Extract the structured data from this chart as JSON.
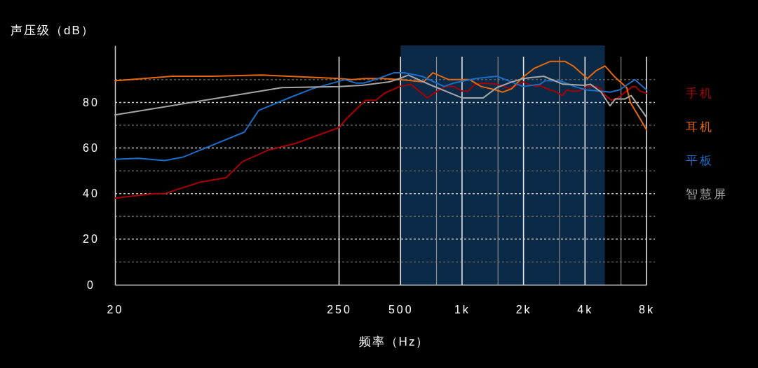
{
  "chart_data": {
    "type": "line",
    "ylabel": "声压级（dB）",
    "xlabel": "频率（Hz）",
    "log": "x",
    "grid": true,
    "legend": "right",
    "xlim": [
      20,
      8000
    ],
    "ylim": [
      0,
      105
    ],
    "xticks": [
      20,
      250,
      500,
      {
        "value": 750,
        "label": null
      },
      {
        "value": 1000,
        "label": "1k"
      },
      {
        "value": 1500,
        "label": null
      },
      {
        "value": 2000,
        "label": "2k"
      },
      {
        "value": 3000,
        "label": null
      },
      {
        "value": 4000,
        "label": "4k"
      },
      {
        "value": 6000,
        "label": null
      },
      {
        "value": 8000,
        "label": "8k"
      }
    ],
    "yticks": [
      0,
      {
        "value": 10,
        "label": null
      },
      20,
      {
        "value": 30,
        "label": null
      },
      40,
      {
        "value": 50,
        "label": null
      },
      60,
      {
        "value": 70,
        "label": null
      },
      80,
      {
        "value": 90,
        "label": null
      }
    ],
    "bands": [
      {
        "axis": "x",
        "from": 500,
        "to": 5000,
        "color": "#0b2a47"
      }
    ],
    "series": [
      {
        "name": "手机",
        "color": "#aa0000",
        "x": [
          20,
          31,
          35,
          52,
          70,
          84,
          112,
          153,
          250,
          273,
          337,
          379,
          417,
          495,
          561,
          677,
          727,
          832,
          909,
          1000,
          1070,
          1160,
          1260,
          1480,
          1720,
          1990,
          2120,
          2300,
          2410,
          2680,
          2840,
          3100,
          3250,
          3440,
          3730,
          4110,
          4540,
          4800,
          4970,
          5390,
          5800,
          6400,
          6840,
          7060,
          7420,
          8000
        ],
        "values": [
          38,
          40,
          40,
          45,
          47,
          54,
          59,
          62,
          69,
          73,
          81,
          81,
          84,
          87,
          88,
          82,
          84,
          87,
          87,
          85,
          85,
          88,
          88.5,
          88,
          86,
          89,
          88,
          87,
          87.5,
          85.5,
          85,
          83,
          85.5,
          85,
          85,
          87,
          87,
          86,
          83.5,
          81,
          82,
          85,
          87,
          87,
          85,
          84
        ]
      },
      {
        "name": "耳机",
        "color": "#e8680c",
        "x": [
          20,
          38,
          60,
          104,
          250,
          288,
          337,
          408,
          495,
          647,
          720,
          862,
          1000,
          1090,
          1240,
          1460,
          1580,
          1750,
          1950,
          2260,
          2700,
          3200,
          3500,
          4110,
          4540,
          5010,
          5620,
          6400,
          6670,
          7480,
          8000
        ],
        "values": [
          89.5,
          91.5,
          91.5,
          92,
          90.5,
          90,
          90.5,
          90.5,
          90,
          89,
          93,
          90,
          90,
          90,
          87,
          85.5,
          84.5,
          86,
          90.5,
          95,
          98,
          98,
          96,
          90.5,
          94,
          96,
          91,
          86.5,
          80,
          72.5,
          68
        ]
      },
      {
        "name": "平板",
        "color": "#1a6ec8",
        "x": [
          20,
          26,
          35,
          43,
          52,
          86,
          92,
          101,
          147,
          185,
          267,
          303,
          330,
          375,
          463,
          522,
          636,
          817,
          909,
          1170,
          1480,
          1990,
          2410,
          2550,
          3020,
          3560,
          4050,
          4770,
          5300,
          5900,
          7010,
          8000
        ],
        "values": [
          55,
          55.5,
          54.5,
          56,
          59,
          67,
          71,
          76.5,
          82.5,
          86,
          90,
          88.5,
          88.5,
          90,
          93,
          93,
          91.5,
          87,
          88.5,
          90.5,
          91.5,
          87,
          88,
          89.5,
          89.5,
          87,
          85.5,
          85,
          84.5,
          85.5,
          90,
          85.5
        ]
      },
      {
        "name": "智慧屏",
        "color": "#a6a6a6",
        "x": [
          20,
          131,
          250,
          323,
          440,
          495,
          546,
          708,
          1000,
          1270,
          1480,
          1750,
          2000,
          2230,
          2510,
          3120,
          3980,
          4250,
          4800,
          5300,
          5620,
          6250,
          6730,
          8000
        ],
        "values": [
          74.5,
          86.5,
          87,
          87.5,
          89,
          90.5,
          92,
          87.5,
          82,
          82,
          86.5,
          89,
          90.5,
          91,
          91.5,
          88,
          87.5,
          88,
          84.5,
          78.5,
          81.5,
          81.5,
          83,
          73.5
        ]
      }
    ]
  }
}
